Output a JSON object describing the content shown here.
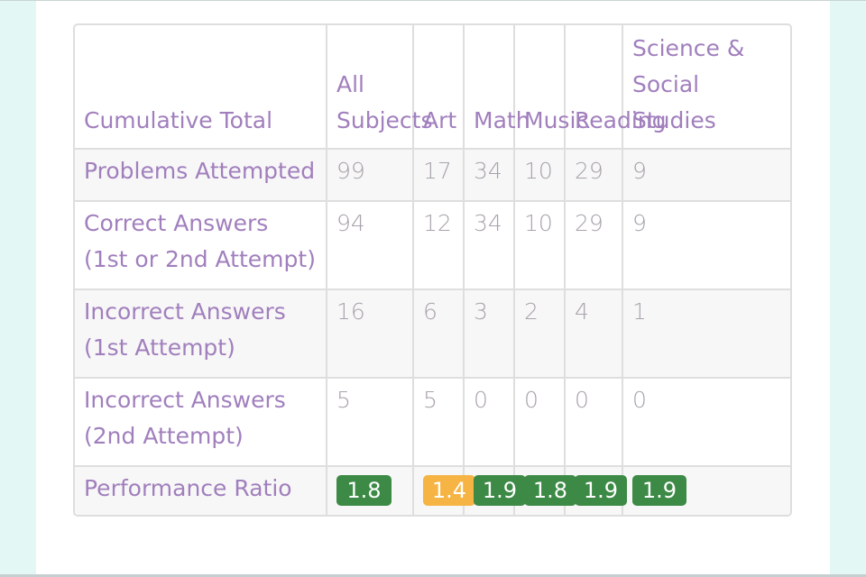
{
  "table": {
    "corner": "Cumulative Total",
    "columns": [
      "All Subjects",
      "Art",
      "Math",
      "Music",
      "Reading",
      "Science & Social Studies"
    ],
    "rows": [
      {
        "label": "Problems Attempted",
        "values": [
          "99",
          "17",
          "34",
          "10",
          "29",
          "9"
        ]
      },
      {
        "label": "Correct Answers (1st or 2nd Attempt)",
        "values": [
          "94",
          "12",
          "34",
          "10",
          "29",
          "9"
        ]
      },
      {
        "label": "Incorrect Answers (1st Attempt)",
        "values": [
          "16",
          "6",
          "3",
          "2",
          "4",
          "1"
        ]
      },
      {
        "label": "Incorrect Answers (2nd Attempt)",
        "values": [
          "5",
          "5",
          "0",
          "0",
          "0",
          "0"
        ]
      }
    ],
    "ratio": {
      "label": "Performance Ratio",
      "values": [
        "1.8",
        "1.4",
        "1.9",
        "1.8",
        "1.9",
        "1.9"
      ],
      "statuses": [
        "good",
        "warn",
        "good",
        "good",
        "good",
        "good"
      ]
    }
  },
  "colors": {
    "good": "#3c8a45",
    "warn": "#f5b444",
    "label_text": "#a17fbd",
    "value_text": "#a9a2ad"
  }
}
